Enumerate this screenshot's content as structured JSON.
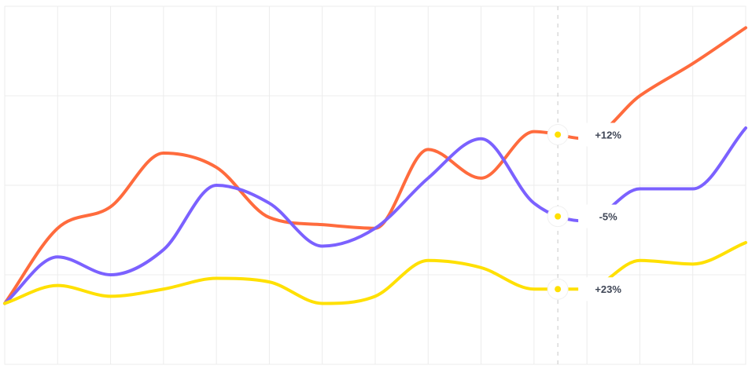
{
  "chart_data": {
    "type": "line",
    "title": "",
    "xlabel": "",
    "ylabel": "",
    "grid": true,
    "x": [
      0,
      1,
      2,
      3,
      4,
      5,
      6,
      7,
      8,
      9,
      10,
      11,
      12,
      13,
      14
    ],
    "xlim": [
      0,
      14
    ],
    "ylim": [
      0,
      100
    ],
    "hover_index": 10.45,
    "series": [
      {
        "color": "#ff6b3d",
        "values": [
          17,
          38,
          44,
          59,
          55,
          41,
          39,
          38,
          60,
          52,
          65,
          63,
          75,
          84,
          94
        ],
        "tooltip": "+12%"
      },
      {
        "color": "#7b61ff",
        "values": [
          17,
          30,
          25,
          32,
          50,
          45,
          33,
          38,
          52,
          63,
          45,
          40,
          49,
          49,
          66
        ],
        "tooltip": "-5%"
      },
      {
        "color": "#ffe000",
        "values": [
          17,
          22,
          19,
          21,
          24,
          23,
          17,
          19,
          29,
          27,
          21,
          21,
          29,
          28,
          34
        ],
        "tooltip": "+23%"
      }
    ]
  }
}
